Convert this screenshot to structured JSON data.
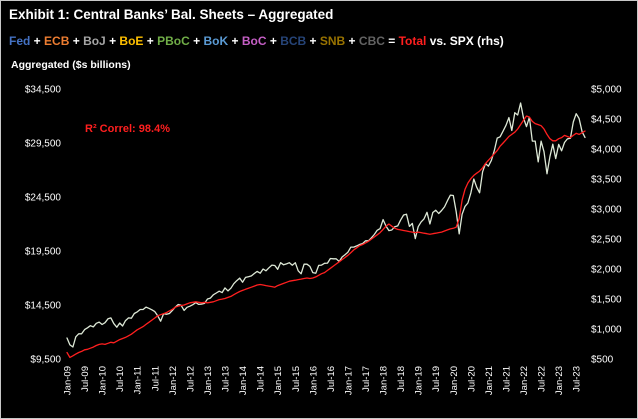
{
  "title": "Exhibit 1: Central Banks’ Bal. Sheets – Aggregated",
  "axis_label": "Aggregated ($s billions)",
  "annotation": {
    "text": "R² Correl: 98.4%",
    "color": "#ff1f1f"
  },
  "legend": {
    "separator": "+",
    "equals": "=",
    "vs_label": "vs.",
    "total_label": "Total",
    "total_color": "#ff1f1f",
    "spx_label": "SPX (rhs)",
    "spx_color": "#ffffff",
    "banks": [
      {
        "label": "Fed",
        "color": "#4472c4"
      },
      {
        "label": "ECB",
        "color": "#ed7d31"
      },
      {
        "label": "BoJ",
        "color": "#a5a5a5"
      },
      {
        "label": "BoE",
        "color": "#ffc000"
      },
      {
        "label": "PBoC",
        "color": "#70ad47"
      },
      {
        "label": "BoK",
        "color": "#5b9bd5"
      },
      {
        "label": "BoC",
        "color": "#c55fc5"
      },
      {
        "label": "BCB",
        "color": "#264478"
      },
      {
        "label": "SNB",
        "color": "#997300"
      },
      {
        "label": "CBC",
        "color": "#636363"
      }
    ]
  },
  "chart_data": {
    "type": "line",
    "title": "Exhibit 1: Central Banks’ Bal. Sheets – Aggregated",
    "subtitle": "Aggregated ($s billions)",
    "annotation": "R² Correl: 98.4%",
    "grid": false,
    "x_unit": "month",
    "x_start_label": "Jan-09",
    "x_tick_interval": 6,
    "x_tick_labels": [
      "Jan-09",
      "Jul-09",
      "Jan-10",
      "Jul-10",
      "Jan-11",
      "Jul-11",
      "Jan-12",
      "Jul-12",
      "Jan-13",
      "Jul-13",
      "Jan-14",
      "Jul-14",
      "Jan-15",
      "Jul-15",
      "Jan-16",
      "Jul-16",
      "Jan-17",
      "Jul-17",
      "Jan-18",
      "Jul-18",
      "Jan-19",
      "Jul-19",
      "Jan-20",
      "Jul-20",
      "Jan-21",
      "Jul-21",
      "Jan-22",
      "Jul-22",
      "Jan-23",
      "Jul-23"
    ],
    "left_axis": {
      "label": "Aggregated ($s billions)",
      "min": 9500,
      "max": 34500,
      "tick_values": [
        9500,
        14500,
        19500,
        24500,
        29500,
        34500
      ],
      "tick_labels": [
        "$9,500",
        "$14,500",
        "$19,500",
        "$24,500",
        "$29,500",
        "$34,500"
      ]
    },
    "right_axis": {
      "label": "SPX (rhs)",
      "min": 500,
      "max": 5000,
      "tick_values": [
        500,
        1000,
        1500,
        2000,
        2500,
        3000,
        3500,
        4000,
        4500,
        5000
      ],
      "tick_labels": [
        "$500",
        "$1,000",
        "$1,500",
        "$2,000",
        "$2,500",
        "$3,000",
        "$3,500",
        "$4,000",
        "$4,500",
        "$5,000"
      ]
    },
    "series": [
      {
        "name": "SPX (rhs)",
        "axis": "right",
        "color": "#dde8d6",
        "values": [
          850,
          735,
          700,
          870,
          920,
          920,
          990,
          1020,
          1055,
          1035,
          1095,
          1115,
          1075,
          1105,
          1170,
          1185,
          1090,
          1030,
          1100,
          1050,
          1140,
          1185,
          1180,
          1258,
          1285,
          1325,
          1325,
          1365,
          1345,
          1320,
          1290,
          1220,
          1130,
          1255,
          1245,
          1258,
          1310,
          1365,
          1408,
          1395,
          1310,
          1362,
          1380,
          1405,
          1440,
          1410,
          1415,
          1426,
          1500,
          1515,
          1570,
          1600,
          1630,
          1606,
          1685,
          1635,
          1680,
          1755,
          1805,
          1848,
          1780,
          1860,
          1870,
          1885,
          1925,
          1960,
          1930,
          2000,
          1970,
          2020,
          2065,
          2059,
          1995,
          2105,
          2070,
          2085,
          2105,
          2063,
          2105,
          1970,
          1920,
          2080,
          2080,
          2044,
          1940,
          1930,
          2060,
          2065,
          2095,
          2099,
          2175,
          2170,
          2170,
          2125,
          2200,
          2239,
          2280,
          2365,
          2365,
          2385,
          2410,
          2423,
          2470,
          2470,
          2520,
          2575,
          2645,
          2674,
          2824,
          2715,
          2640,
          2650,
          2705,
          2718,
          2815,
          2900,
          2914,
          2710,
          2760,
          2507,
          2705,
          2785,
          2835,
          2945,
          2750,
          2942,
          2980,
          2925,
          2975,
          3035,
          3140,
          3231,
          3225,
          2954,
          2585,
          2912,
          3044,
          3100,
          3270,
          3500,
          3363,
          3270,
          3620,
          3756,
          3714,
          3811,
          3973,
          4181,
          4204,
          4298,
          4395,
          4523,
          4308,
          4605,
          4567,
          4766,
          4516,
          4374,
          4530,
          4132,
          4132,
          3785,
          4130,
          3955,
          3586,
          3872,
          4080,
          3840,
          4077,
          3970,
          4109,
          4169,
          4180,
          4450,
          4589,
          4508,
          4288,
          4194
        ]
      },
      {
        "name": "Total (lhs)",
        "axis": "left",
        "color": "#ff1f1f",
        "values": [
          10100,
          9650,
          9800,
          9950,
          10100,
          10200,
          10350,
          10400,
          10500,
          10600,
          10750,
          10850,
          10900,
          10850,
          10950,
          11050,
          11000,
          11150,
          11300,
          11400,
          11500,
          11650,
          11800,
          12000,
          12200,
          12350,
          12500,
          12700,
          12900,
          13100,
          13300,
          13500,
          13600,
          13700,
          13800,
          13950,
          14100,
          14300,
          14400,
          14450,
          14500,
          14600,
          14700,
          14750,
          14800,
          14750,
          14700,
          14750,
          14700,
          14750,
          14800,
          14900,
          15000,
          15050,
          15100,
          15200,
          15300,
          15450,
          15600,
          15750,
          15850,
          15950,
          16050,
          16150,
          16250,
          16350,
          16400,
          16350,
          16300,
          16250,
          16200,
          16150,
          16300,
          16400,
          16500,
          16600,
          16700,
          16750,
          16800,
          16850,
          16900,
          16950,
          17000,
          16950,
          17000,
          17100,
          17250,
          17400,
          17500,
          17700,
          17900,
          18100,
          18300,
          18500,
          18700,
          18900,
          19100,
          19350,
          19600,
          19800,
          20000,
          20100,
          20250,
          20400,
          20600,
          20800,
          21000,
          21200,
          21500,
          21800,
          22000,
          21800,
          21600,
          21500,
          21450,
          21400,
          21350,
          21300,
          21250,
          21200,
          21250,
          21200,
          21150,
          21100,
          21050,
          21100,
          21150,
          21200,
          21250,
          21350,
          21450,
          21550,
          21600,
          21700,
          22500,
          24200,
          25200,
          25800,
          26200,
          26500,
          26700,
          26900,
          27200,
          27600,
          27900,
          28200,
          28500,
          28800,
          29200,
          29500,
          29800,
          30100,
          30300,
          30500,
          30800,
          31200,
          31600,
          32000,
          31900,
          31500,
          31300,
          31200,
          31100,
          30800,
          30300,
          29900,
          29700,
          29700,
          29900,
          30000,
          30200,
          30100,
          30000,
          30200,
          30400,
          30300,
          30450,
          30600
        ]
      }
    ]
  }
}
